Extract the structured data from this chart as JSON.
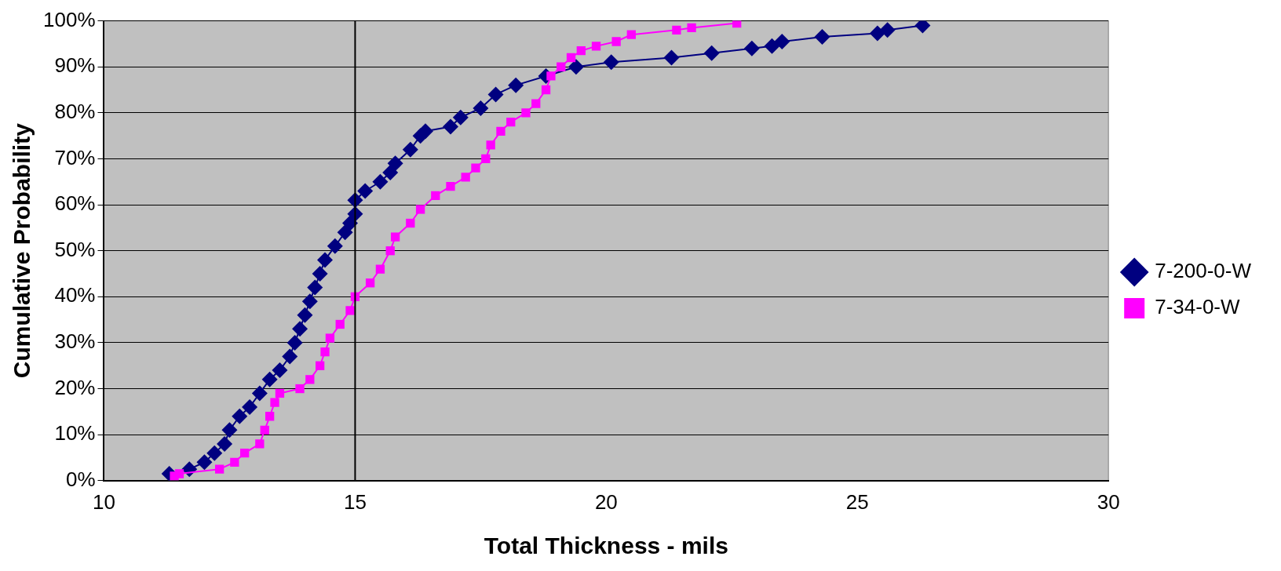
{
  "chart_data": {
    "type": "line",
    "xlabel": "Total Thickness - mils",
    "ylabel": "Cumulative Probability",
    "xlim": [
      10,
      30
    ],
    "xticks": [
      10,
      15,
      20,
      25,
      30
    ],
    "ylim": [
      0,
      100
    ],
    "yticks": [
      {
        "value": 0,
        "label": "0%"
      },
      {
        "value": 10,
        "label": "10%"
      },
      {
        "value": 20,
        "label": "20%"
      },
      {
        "value": 30,
        "label": "30%"
      },
      {
        "value": 40,
        "label": "40%"
      },
      {
        "value": 50,
        "label": "50%"
      },
      {
        "value": 60,
        "label": "60%"
      },
      {
        "value": 70,
        "label": "70%"
      },
      {
        "value": 80,
        "label": "80%"
      },
      {
        "value": 90,
        "label": "90%"
      },
      {
        "value": 100,
        "label": "100%"
      }
    ],
    "grid": "y",
    "legend": "right",
    "line_style": "solid",
    "ref_lines": [
      {
        "axis": "x",
        "value": 15,
        "color": "#000000"
      }
    ],
    "series": [
      {
        "name": "7-200-0-W",
        "color": "#000080",
        "marker": "diamond",
        "x": [
          11.3,
          11.7,
          12.0,
          12.2,
          12.4,
          12.5,
          12.7,
          12.9,
          13.1,
          13.3,
          13.5,
          13.7,
          13.8,
          13.9,
          14.0,
          14.1,
          14.2,
          14.3,
          14.4,
          14.6,
          14.8,
          14.9,
          15.0,
          15.0,
          15.2,
          15.5,
          15.7,
          15.8,
          16.1,
          16.3,
          16.4,
          16.9,
          17.1,
          17.5,
          17.8,
          18.2,
          18.8,
          19.4,
          20.1,
          21.3,
          22.1,
          22.9,
          23.3,
          23.5,
          24.3,
          25.4,
          25.6,
          26.3
        ],
        "values": [
          1.5,
          2.5,
          4,
          6,
          8,
          11,
          14,
          16,
          19,
          22,
          24,
          27,
          30,
          33,
          36,
          39,
          42,
          45,
          48,
          51,
          54,
          56,
          58,
          61,
          63,
          65,
          67,
          69,
          72,
          75,
          76,
          77,
          79,
          81,
          84,
          86,
          88,
          90,
          91,
          92,
          93,
          94,
          94.5,
          95.5,
          96.5,
          97.3,
          98,
          99
        ]
      },
      {
        "name": "7-34-0-W",
        "color": "#ff00ff",
        "marker": "square",
        "x": [
          11.4,
          11.5,
          12.3,
          12.6,
          12.8,
          13.1,
          13.2,
          13.3,
          13.4,
          13.5,
          13.9,
          14.1,
          14.3,
          14.4,
          14.5,
          14.7,
          14.9,
          15.0,
          15.3,
          15.5,
          15.7,
          15.8,
          16.1,
          16.3,
          16.6,
          16.9,
          17.2,
          17.4,
          17.6,
          17.7,
          17.9,
          18.1,
          18.4,
          18.6,
          18.8,
          18.9,
          19.1,
          19.3,
          19.5,
          19.8,
          20.2,
          20.5,
          21.4,
          21.7,
          22.6
        ],
        "values": [
          1,
          1.5,
          2.5,
          4,
          6,
          8,
          11,
          14,
          17,
          19,
          20,
          22,
          25,
          28,
          31,
          34,
          37,
          40,
          43,
          46,
          50,
          53,
          56,
          59,
          62,
          64,
          66,
          68,
          70,
          73,
          76,
          78,
          80,
          82,
          85,
          88,
          90,
          92,
          93.5,
          94.5,
          95.5,
          97,
          98,
          98.5,
          99.5
        ]
      }
    ]
  }
}
